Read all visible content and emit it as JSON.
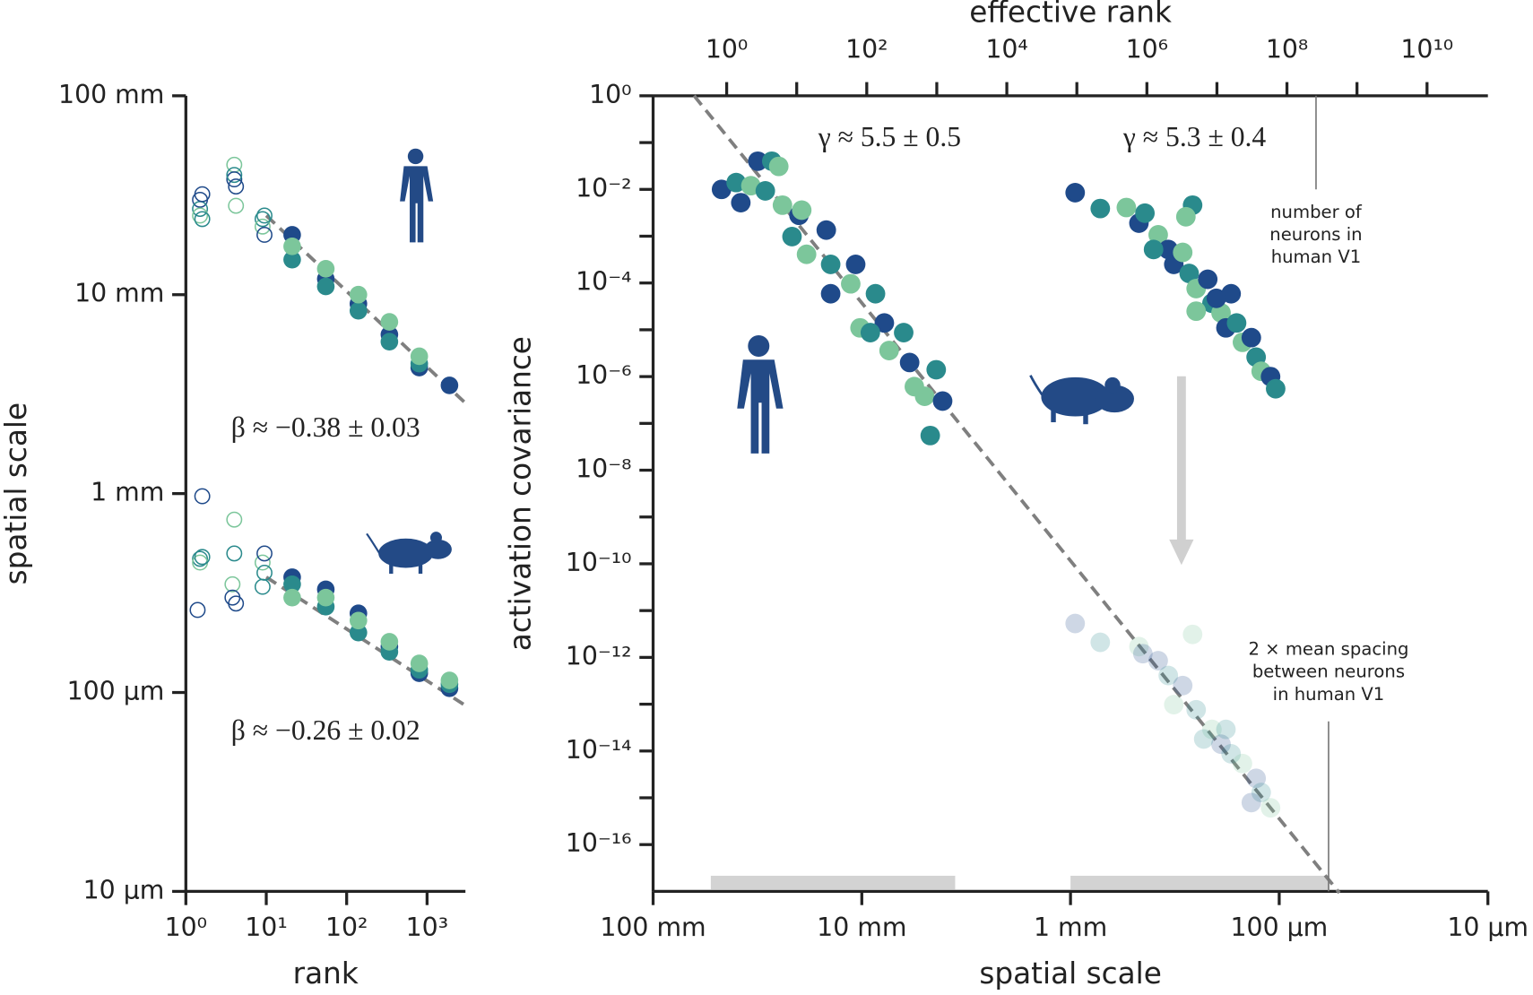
{
  "chart_data": [
    {
      "type": "scatter",
      "xlabel": "rank",
      "ylabel": "spatial scale",
      "xscale": "log",
      "yscale": "log",
      "xlim": [
        1,
        3000
      ],
      "ylim": [
        0.01,
        100
      ],
      "xticks": [
        {
          "value": 1,
          "label": "10⁰"
        },
        {
          "value": 10,
          "label": "10¹"
        },
        {
          "value": 100,
          "label": "10²"
        },
        {
          "value": 1000,
          "label": "10³"
        }
      ],
      "yticks": [
        {
          "value": 100,
          "label": "100 mm"
        },
        {
          "value": 10,
          "label": "10 mm"
        },
        {
          "value": 1,
          "label": "1 mm"
        },
        {
          "value": 0.1,
          "label": "100 µm"
        },
        {
          "value": 0.01,
          "label": "10 µm"
        }
      ],
      "palette": [
        "#1f4a8a",
        "#2a8a8c",
        "#7cc69b"
      ],
      "series": [
        {
          "marker": "open",
          "alpha": 1,
          "x": [
            1.5,
            1.5,
            1.5,
            1.6,
            1.6,
            4,
            4,
            4,
            4.2,
            4.2,
            9,
            9,
            9.5,
            9.5
          ],
          "values": [
            30,
            27,
            25,
            32,
            24,
            45,
            38,
            40,
            28,
            35,
            24,
            22,
            20,
            25
          ]
        },
        {
          "marker": "filled",
          "alpha": 1,
          "x": [
            21,
            21,
            21,
            55,
            55,
            55,
            140,
            140,
            140,
            340,
            340,
            340,
            800,
            800,
            800,
            1900
          ],
          "values": [
            20,
            15,
            17.5,
            12,
            11,
            13.5,
            9,
            8.3,
            10,
            6.3,
            5.8,
            7.3,
            4.3,
            4.5,
            4.9,
            3.5
          ]
        },
        {
          "marker": "open",
          "alpha": 1,
          "x": [
            1.4,
            1.5,
            1.5,
            1.6,
            1.6,
            3.8,
            3.8,
            4,
            4,
            4.2,
            9,
            9,
            9.5,
            9.5
          ],
          "values": [
            0.26,
            0.47,
            0.45,
            0.97,
            0.48,
            0.35,
            0.3,
            0.5,
            0.74,
            0.28,
            0.34,
            0.45,
            0.5,
            0.4
          ]
        },
        {
          "marker": "filled",
          "alpha": 1,
          "x": [
            21,
            21,
            21,
            55,
            55,
            55,
            140,
            140,
            140,
            340,
            340,
            340,
            800,
            800,
            800,
            1900,
            1900,
            1900
          ],
          "values": [
            0.38,
            0.35,
            0.3,
            0.33,
            0.27,
            0.3,
            0.25,
            0.2,
            0.23,
            0.17,
            0.16,
            0.18,
            0.125,
            0.13,
            0.14,
            0.105,
            0.11,
            0.115
          ]
        }
      ],
      "fits": [
        {
          "color": "#7f7f7f",
          "style": "dashed",
          "x": [
            10,
            3000
          ],
          "values": [
            25,
            2.85
          ]
        },
        {
          "color": "#7f7f7f",
          "style": "dashed",
          "x": [
            10,
            3000
          ],
          "values": [
            0.38,
            0.086
          ]
        }
      ],
      "annotations": [
        "β ≈ −0.38 ± 0.03",
        "β ≈ −0.26 ± 0.02"
      ]
    },
    {
      "type": "scatter",
      "xlabel": "spatial scale",
      "ylabel": "activation covariance",
      "x2label": "effective rank",
      "xscale": "log",
      "yscale": "log",
      "xlim": [
        100,
        0.01
      ],
      "ylim": [
        1e-17,
        1
      ],
      "x2lim": [
        0.089,
        74000000000.0
      ],
      "xticks": [
        {
          "value": 100,
          "label": "100 mm"
        },
        {
          "value": 10,
          "label": "10 mm"
        },
        {
          "value": 1,
          "label": "1 mm"
        },
        {
          "value": 0.1,
          "label": "100 µm"
        },
        {
          "value": 0.01,
          "label": "10 µm"
        }
      ],
      "x2ticks": [
        {
          "value": 1,
          "label": "10⁰"
        },
        {
          "value": 100,
          "label": "10²"
        },
        {
          "value": 10000,
          "label": "10⁴"
        },
        {
          "value": 1000000,
          "label": "10⁶"
        },
        {
          "value": 100000000,
          "label": "10⁸"
        },
        {
          "value": 10000000000,
          "label": "10¹⁰"
        }
      ],
      "x2minor": [
        10,
        1000,
        100000,
        10000000,
        1000000000
      ],
      "yticks": [
        {
          "value": 1,
          "label": "10⁰"
        },
        {
          "value": 0.01,
          "label": "10⁻²"
        },
        {
          "value": 0.0001,
          "label": "10⁻⁴"
        },
        {
          "value": 1e-06,
          "label": "10⁻⁶"
        },
        {
          "value": 1e-08,
          "label": "10⁻⁸"
        },
        {
          "value": 1e-10,
          "label": "10⁻¹⁰"
        },
        {
          "value": 1e-12,
          "label": "10⁻¹²"
        },
        {
          "value": 1e-14,
          "label": "10⁻¹⁴"
        },
        {
          "value": 1e-16,
          "label": "10⁻¹⁶"
        }
      ],
      "yminor": [
        0.1,
        0.001,
        1e-05,
        1e-07,
        1e-09,
        1e-11,
        1e-13,
        1e-15
      ],
      "palette": [
        "#1f4a8a",
        "#2a8a8c",
        "#7cc69b"
      ],
      "series": [
        {
          "marker": "filled",
          "alpha": 1,
          "x": [
            47,
            40,
            34,
            31.5,
            27,
            25,
            38,
            29,
            24,
            20,
            21.6,
            18.4,
            14.8,
            14.1,
            11.3,
            10.7,
            8.6,
            10.2,
            7.8,
            6.3,
            7.4,
            5.9,
            4.4,
            5.0,
            4.1,
            4.7,
            19.4,
            14.1,
            9.1,
            5.6
          ],
          "values": [
            0.01,
            0.014,
            0.012,
            0.04,
            0.04,
            0.031,
            0.0052,
            0.0093,
            0.0046,
            0.0028,
            0.00098,
            0.00041,
            0.00135,
            0.00025,
            9.6e-05,
            0.00025,
            5.9e-05,
            1.1e-05,
            1.4e-05,
            8.7e-06,
            3.6e-06,
            2e-06,
            1.4e-06,
            3.8e-07,
            3e-07,
            5.5e-08,
            0.0036,
            5.9e-05,
            8.7e-06,
            6.1e-07
          ]
        },
        {
          "marker": "filled",
          "alpha": 1,
          "x": [
            0.95,
            0.72,
            0.54,
            0.47,
            0.44,
            0.38,
            0.34,
            0.26,
            0.28,
            0.32,
            0.27,
            0.25,
            0.22,
            0.21,
            0.19,
            0.18,
            0.16,
            0.15,
            0.136,
            0.129,
            0.122,
            0.11,
            0.104,
            0.25,
            0.17,
            0.4,
            0.29,
            0.2
          ],
          "values": [
            0.0085,
            0.0039,
            0.0041,
            0.0019,
            0.0031,
            0.00107,
            0.00052,
            0.0046,
            0.0026,
            0.00025,
            0.00016,
            7.6e-05,
            0.00012,
            3.7e-05,
            2.3e-05,
            1.1e-05,
            1.4e-05,
            5.4e-06,
            6.8e-06,
            2.6e-06,
            1.3e-06,
            1e-06,
            5.5e-07,
            2.5e-05,
            5.9e-05,
            0.00052,
            0.00045,
            4.7e-05
          ]
        },
        {
          "marker": "filled",
          "alpha": 0.22,
          "x": [
            0.95,
            0.72,
            0.47,
            0.38,
            0.34,
            0.26,
            0.29,
            0.25,
            0.21,
            0.19,
            0.17,
            0.15,
            0.129,
            0.122,
            0.11,
            0.136,
            0.23,
            0.32,
            0.45,
            0.18
          ],
          "values": [
            5.3e-12,
            2.1e-12,
            1.7e-12,
            8.5e-13,
            4.1e-13,
            3.1e-12,
            2.5e-13,
            7.6e-14,
            2.9e-14,
            1.4e-14,
            8.7e-15,
            5.4e-15,
            2.6e-15,
            1.3e-15,
            6.1e-16,
            7.9e-16,
            1.8e-14,
            9.8e-14,
            1.2e-12,
            2.9e-14
          ]
        }
      ],
      "fits": [
        {
          "color": "#7f7f7f",
          "style": "dashed",
          "x": [
            63.6,
            0.0515
          ],
          "values": [
            1,
            9.3e-18
          ]
        }
      ],
      "ranges": [
        [
          52.9,
          3.57
        ],
        [
          1.0,
          0.0574
        ]
      ],
      "markers": [
        {
          "axis": "x2",
          "x": 260000000,
          "y": [
            1,
            0.01
          ],
          "text": [
            "number of",
            "neurons in",
            "human V1"
          ]
        },
        {
          "axis": "x",
          "x": 0.058,
          "y": [
            4.3e-14,
            1e-17
          ],
          "text": [
            "2 × mean spacing",
            "between neurons",
            "in human V1"
          ]
        }
      ],
      "annotations": [
        "γ ≈ 5.5 ± 0.5",
        "γ ≈ 5.3 ± 0.4"
      ]
    }
  ]
}
